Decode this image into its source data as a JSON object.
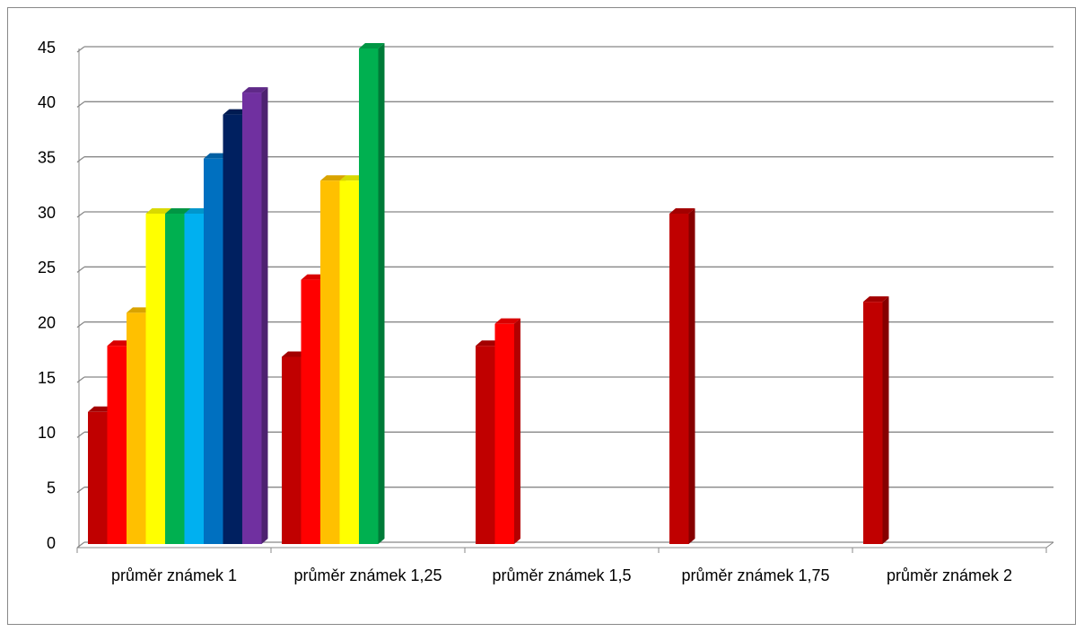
{
  "chart_data": {
    "type": "bar3d",
    "categories": [
      "průměr známek 1",
      "průměr známek 1,25",
      "průměr známek 1,5",
      "průměr známek 1,75",
      "průměr známek 2"
    ],
    "series": [
      {
        "color": "#c00000",
        "values": [
          12,
          17,
          18,
          30,
          22
        ]
      },
      {
        "color": "#ff0000",
        "values": [
          18,
          24,
          20,
          null,
          null
        ]
      },
      {
        "color": "#ffc000",
        "values": [
          21,
          33,
          null,
          null,
          null
        ]
      },
      {
        "color": "#ffff00",
        "values": [
          30,
          33,
          null,
          null,
          null
        ]
      },
      {
        "color": "#00b050",
        "values": [
          30,
          45,
          null,
          null,
          null
        ]
      },
      {
        "color": "#00b0f0",
        "values": [
          30,
          null,
          null,
          null,
          null
        ]
      },
      {
        "color": "#0070c0",
        "values": [
          35,
          null,
          null,
          null,
          null
        ]
      },
      {
        "color": "#002060",
        "values": [
          39,
          null,
          null,
          null,
          null
        ]
      },
      {
        "color": "#7030a0",
        "values": [
          41,
          null,
          null,
          null,
          null
        ]
      }
    ],
    "ylim": [
      0,
      45
    ],
    "yticks": [
      0,
      5,
      10,
      15,
      20,
      25,
      30,
      35,
      40,
      45
    ],
    "grid": true
  }
}
